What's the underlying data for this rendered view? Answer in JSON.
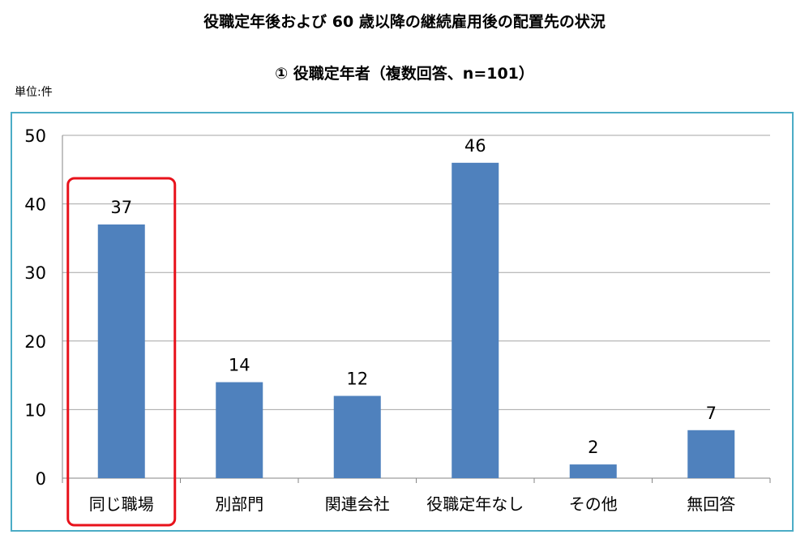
{
  "header": {
    "title": "役職定年後および 60 歳以降の継続雇用後の配置先の状況",
    "subtitle": "①  役職定年者（複数回答、n=101）",
    "unit": "単位:件"
  },
  "colors": {
    "bar": "#4f81bd",
    "highlight": "#e8121b",
    "frame": "#4bacc6",
    "grid": "#a6a6a6"
  },
  "chart_data": {
    "type": "bar",
    "categories": [
      "同じ職場",
      "別部門",
      "関連会社",
      "役職定年なし",
      "その他",
      "無回答"
    ],
    "values": [
      37,
      14,
      12,
      46,
      2,
      7
    ],
    "ylim": [
      0,
      50
    ],
    "yticks": [
      0,
      10,
      20,
      30,
      40,
      50
    ],
    "grid": true,
    "highlighted_category": "同じ職場"
  }
}
